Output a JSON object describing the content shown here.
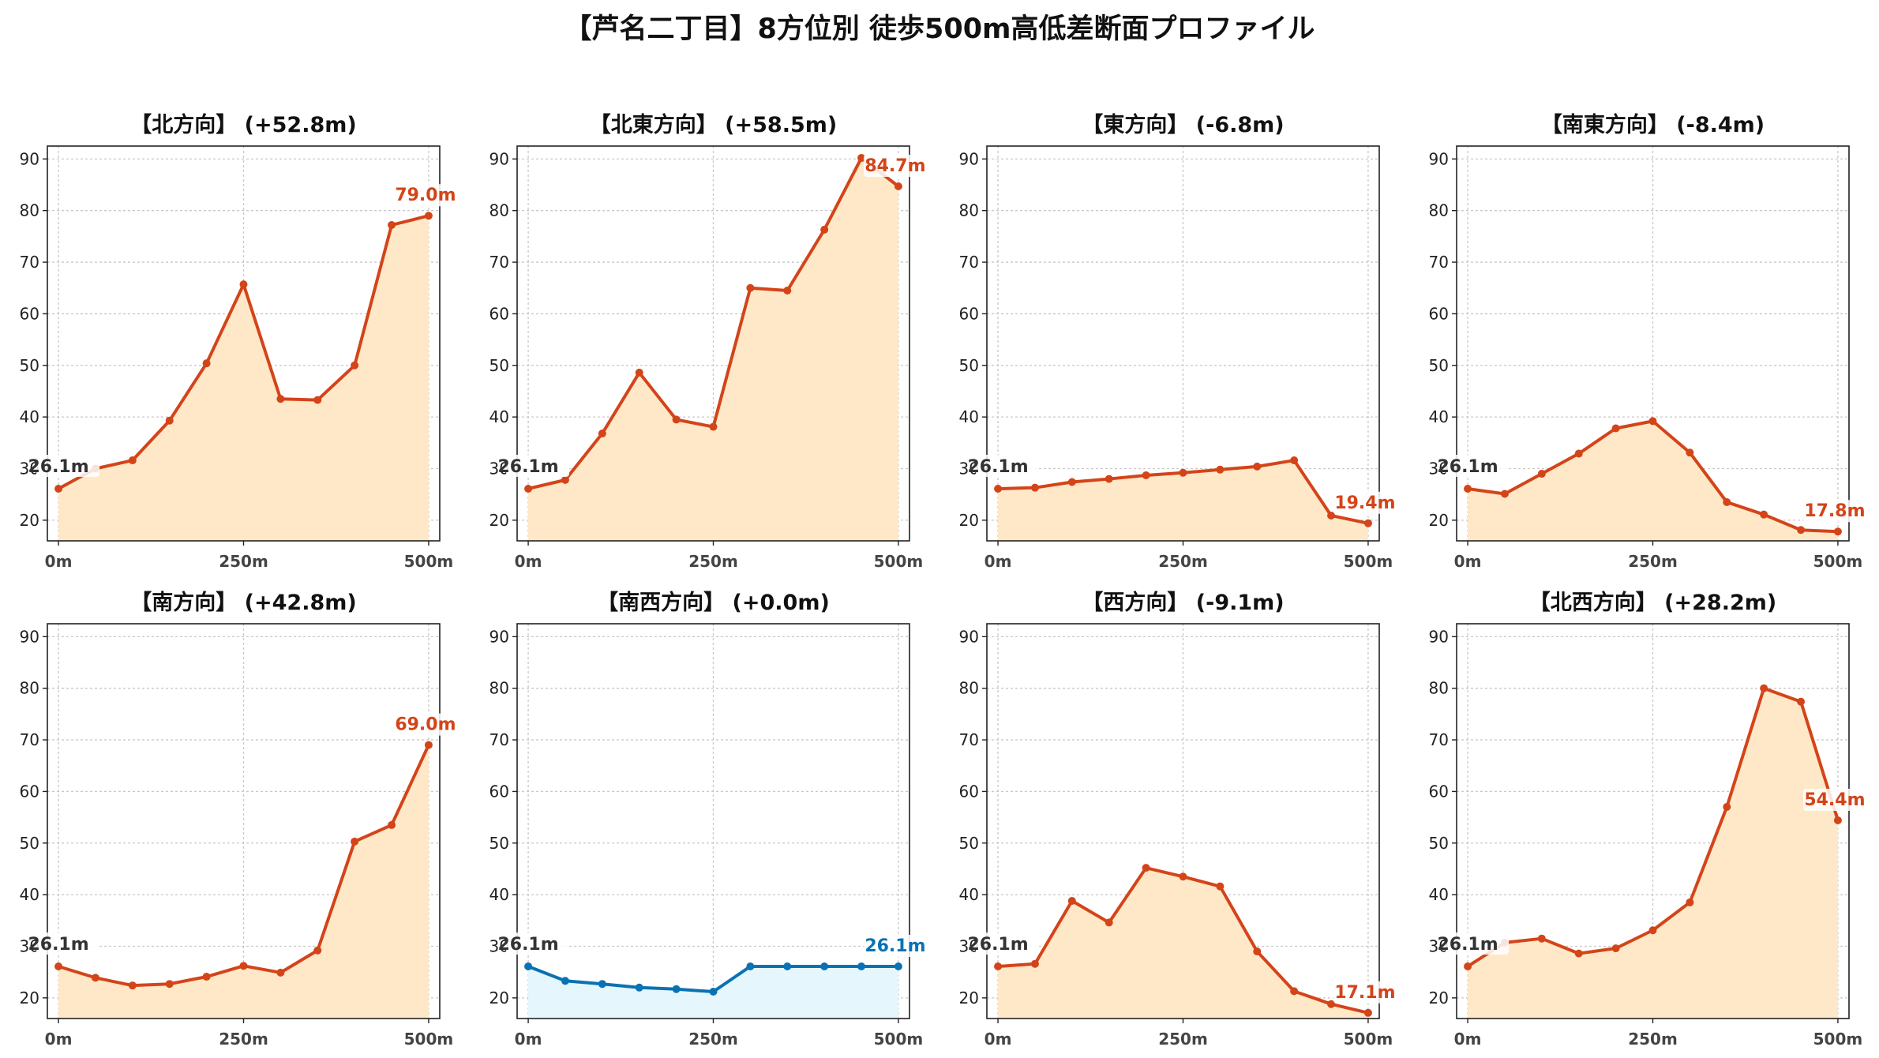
{
  "figure": {
    "title": "【芦名二丁目】8方位別 徒歩500m高低差断面プロファイル"
  },
  "chart_data": [
    {
      "type": "area",
      "title": "【北方向】 (+52.8m)",
      "x": [
        0,
        50,
        100,
        150,
        200,
        250,
        300,
        350,
        400,
        450,
        500
      ],
      "values": [
        26.1,
        30.0,
        31.6,
        39.3,
        50.4,
        65.7,
        43.5,
        43.3,
        50.0,
        77.2,
        79.0
      ],
      "start_label": "26.1m",
      "end_label": "79.0m",
      "color": "#d44419",
      "fill": "#ffe8c8"
    },
    {
      "type": "area",
      "title": "【北東方向】 (+58.5m)",
      "x": [
        0,
        50,
        100,
        150,
        200,
        250,
        300,
        350,
        400,
        450,
        500
      ],
      "values": [
        26.1,
        27.8,
        36.8,
        48.6,
        39.5,
        38.1,
        65.0,
        64.5,
        76.3,
        90.2,
        84.7
      ],
      "start_label": "26.1m",
      "end_label": "84.7m",
      "color": "#d44419",
      "fill": "#ffe8c8"
    },
    {
      "type": "area",
      "title": "【東方向】 (-6.8m)",
      "x": [
        0,
        50,
        100,
        150,
        200,
        250,
        300,
        350,
        400,
        450,
        500
      ],
      "values": [
        26.1,
        26.3,
        27.4,
        28.0,
        28.7,
        29.2,
        29.8,
        30.4,
        31.6,
        20.9,
        19.4
      ],
      "start_label": "26.1m",
      "end_label": "19.4m",
      "color": "#d44419",
      "fill": "#ffe8c8"
    },
    {
      "type": "area",
      "title": "【南東方向】 (-8.4m)",
      "x": [
        0,
        50,
        100,
        150,
        200,
        250,
        300,
        350,
        400,
        450,
        500
      ],
      "values": [
        26.1,
        25.1,
        29.0,
        32.9,
        37.8,
        39.2,
        33.1,
        23.5,
        21.1,
        18.1,
        17.8
      ],
      "start_label": "26.1m",
      "end_label": "17.8m",
      "color": "#d44419",
      "fill": "#ffe8c8"
    },
    {
      "type": "area",
      "title": "【南方向】 (+42.8m)",
      "x": [
        0,
        50,
        100,
        150,
        200,
        250,
        300,
        350,
        400,
        450,
        500
      ],
      "values": [
        26.1,
        23.9,
        22.4,
        22.7,
        24.1,
        26.2,
        24.9,
        29.2,
        50.3,
        53.5,
        69.0
      ],
      "start_label": "26.1m",
      "end_label": "69.0m",
      "color": "#d44419",
      "fill": "#ffe8c8"
    },
    {
      "type": "area",
      "title": "【南西方向】 (+0.0m)",
      "x": [
        0,
        50,
        100,
        150,
        200,
        250,
        300,
        350,
        400,
        450,
        500
      ],
      "values": [
        26.1,
        23.3,
        22.7,
        22.0,
        21.7,
        21.2,
        26.1,
        26.1,
        26.1,
        26.1,
        26.1
      ],
      "start_label": "26.1m",
      "end_label": "26.1m",
      "color": "#0872b5",
      "fill": "#e6f6fd"
    },
    {
      "type": "area",
      "title": "【西方向】 (-9.1m)",
      "x": [
        0,
        50,
        100,
        150,
        200,
        250,
        300,
        350,
        400,
        450,
        500
      ],
      "values": [
        26.1,
        26.6,
        38.8,
        34.6,
        45.2,
        43.5,
        41.6,
        29.0,
        21.3,
        18.8,
        17.1
      ],
      "start_label": "26.1m",
      "end_label": "17.1m",
      "color": "#d44419",
      "fill": "#ffe8c8"
    },
    {
      "type": "area",
      "title": "【北西方向】 (+28.2m)",
      "x": [
        0,
        50,
        100,
        150,
        200,
        250,
        300,
        350,
        400,
        450,
        500
      ],
      "values": [
        26.1,
        30.7,
        31.5,
        28.6,
        29.6,
        33.1,
        38.5,
        57.0,
        80.0,
        77.4,
        54.4
      ],
      "start_label": "26.1m",
      "end_label": "54.4m",
      "color": "#d44419",
      "fill": "#ffe8c8"
    }
  ],
  "axes": {
    "ylim": [
      16,
      92.5
    ],
    "xlim": [
      -15,
      515
    ],
    "yticks": [
      20,
      30,
      40,
      50,
      60,
      70,
      80,
      90
    ],
    "ytick_labels": [
      "20",
      "30",
      "40",
      "50",
      "60",
      "70",
      "80",
      "90"
    ],
    "xticks": [
      0,
      250,
      500
    ],
    "xtick_labels": [
      "0m",
      "250m",
      "500m"
    ],
    "grid": true
  }
}
